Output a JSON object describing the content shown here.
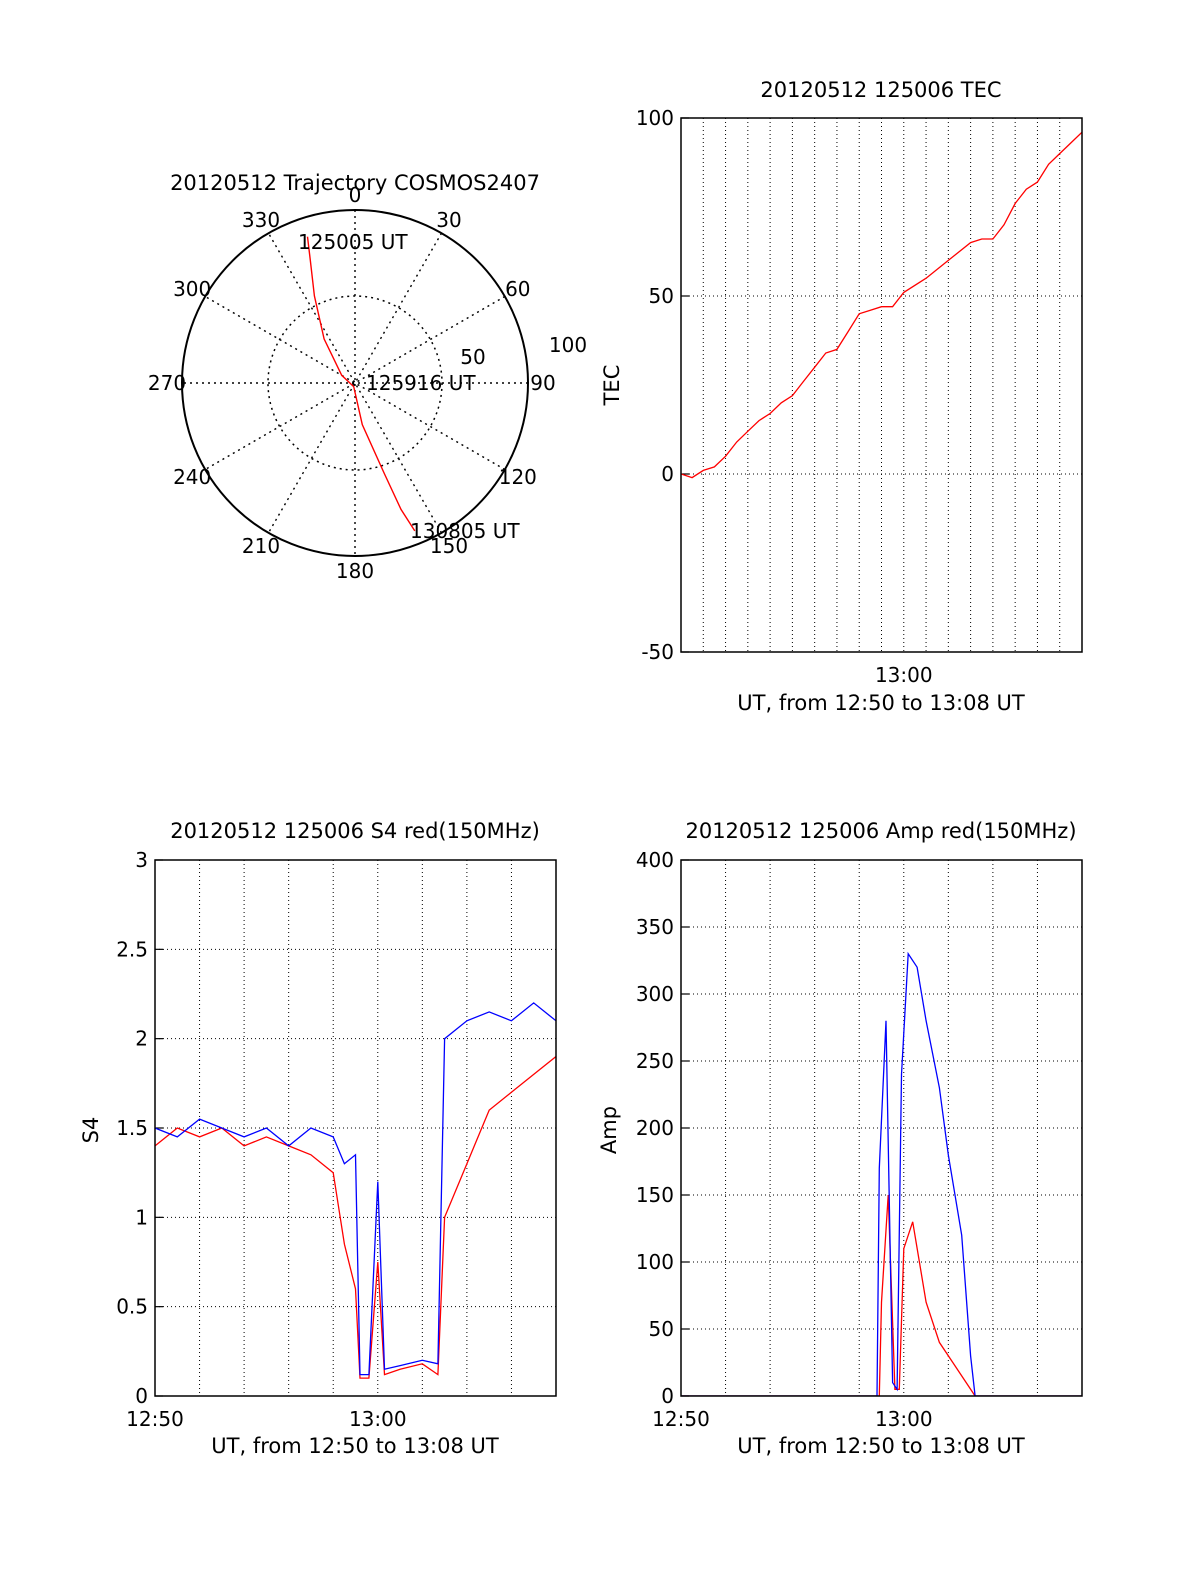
{
  "chart_data": [
    {
      "type": "polar",
      "title": "20120512 Trajectory COSMOS2407",
      "angle_labels": [
        "0",
        "30",
        "60",
        "90",
        "120",
        "150",
        "180",
        "210",
        "240",
        "270",
        "300",
        "330"
      ],
      "radius_labels": [
        "50",
        "100"
      ],
      "track": {
        "color": "#ff0000",
        "points": [
          {
            "az": 342,
            "elev": 10
          },
          {
            "az": 340,
            "elev": 22
          },
          {
            "az": 335,
            "elev": 40
          },
          {
            "az": 325,
            "elev": 62
          },
          {
            "az": 300,
            "elev": 82
          },
          {
            "az": 200,
            "elev": 88
          },
          {
            "az": 170,
            "elev": 68
          },
          {
            "az": 162,
            "elev": 40
          },
          {
            "az": 160,
            "elev": 20
          },
          {
            "az": 158,
            "elev": 7
          }
        ]
      },
      "annotations": [
        "125005 UT",
        "125916 UT",
        "130805 UT"
      ]
    },
    {
      "type": "line",
      "title": "20120512 125006 TEC",
      "xlabel": "UT, from 12:50 to 13:08 UT",
      "ylabel": "TEC",
      "xlim": [
        0,
        18
      ],
      "ylim": [
        -50,
        100
      ],
      "yticks": [
        "-50",
        "0",
        "50",
        "100"
      ],
      "xticks": [
        {
          "at": 10,
          "label": "13:00"
        }
      ],
      "series": [
        {
          "color": "#ff0000",
          "x": [
            0,
            0.5,
            1,
            1.5,
            2,
            2.5,
            3,
            3.5,
            4,
            4.5,
            5,
            5.5,
            6,
            6.5,
            7,
            7.5,
            8,
            8.5,
            9,
            9.5,
            10,
            11,
            12,
            13,
            13.5,
            14,
            14.5,
            15,
            15.5,
            16,
            16.5,
            17,
            17.5,
            18
          ],
          "y": [
            0,
            -1,
            1,
            2,
            5,
            9,
            12,
            15,
            17,
            20,
            22,
            26,
            30,
            34,
            35,
            40,
            45,
            46,
            47,
            47,
            51,
            55,
            60,
            65,
            66,
            66,
            70,
            76,
            80,
            82,
            87,
            90,
            93,
            96
          ]
        }
      ]
    },
    {
      "type": "line",
      "title": "20120512 125006 S4 red(150MHz)",
      "xlabel": "UT, from 12:50 to 13:08 UT",
      "ylabel": "S4",
      "xlim": [
        0,
        18
      ],
      "ylim": [
        0,
        3
      ],
      "yticks": [
        "0",
        "0.5",
        "1",
        "1.5",
        "2",
        "2.5",
        "3"
      ],
      "xticks": [
        {
          "at": 0,
          "label": "12:50"
        },
        {
          "at": 10,
          "label": "13:00"
        }
      ],
      "series": [
        {
          "color": "#ff0000",
          "x": [
            0,
            1,
            2,
            3,
            4,
            5,
            6,
            7,
            8,
            8.5,
            9,
            9.2,
            9.6,
            10,
            10.3,
            11,
            12,
            12.7,
            13,
            14,
            15,
            16,
            17,
            18
          ],
          "y": [
            1.4,
            1.5,
            1.45,
            1.5,
            1.4,
            1.45,
            1.4,
            1.35,
            1.25,
            0.85,
            0.6,
            0.1,
            0.1,
            0.75,
            0.12,
            0.15,
            0.18,
            0.12,
            1.0,
            1.3,
            1.6,
            1.7,
            1.8,
            1.9
          ]
        },
        {
          "color": "#0000ff",
          "x": [
            0,
            1,
            2,
            3,
            4,
            5,
            6,
            7,
            8,
            8.5,
            9,
            9.2,
            9.6,
            10,
            10.3,
            11,
            12,
            12.7,
            13,
            14,
            15,
            16,
            17,
            18
          ],
          "y": [
            1.5,
            1.45,
            1.55,
            1.5,
            1.45,
            1.5,
            1.4,
            1.5,
            1.45,
            1.3,
            1.35,
            0.12,
            0.12,
            1.2,
            0.15,
            0.17,
            0.2,
            0.18,
            2.0,
            2.1,
            2.15,
            2.1,
            2.2,
            2.1
          ]
        }
      ]
    },
    {
      "type": "line",
      "title": "20120512 125006 Amp red(150MHz)",
      "xlabel": "UT, from 12:50 to 13:08 UT",
      "ylabel": "Amp",
      "xlim": [
        0,
        18
      ],
      "ylim": [
        0,
        400
      ],
      "yticks": [
        "0",
        "50",
        "100",
        "150",
        "200",
        "250",
        "300",
        "350",
        "400"
      ],
      "xticks": [
        {
          "at": 0,
          "label": "12:50"
        },
        {
          "at": 10,
          "label": "13:00"
        }
      ],
      "series": [
        {
          "color": "#ff0000",
          "x": [
            0,
            8.9,
            9.0,
            9.3,
            9.6,
            9.8,
            10.0,
            10.4,
            11,
            11.6,
            12.2,
            12.8,
            13.2,
            18
          ],
          "y": [
            0,
            0,
            70,
            150,
            5,
            5,
            110,
            130,
            70,
            40,
            25,
            10,
            0,
            0
          ]
        },
        {
          "color": "#0000ff",
          "x": [
            0,
            8.8,
            8.9,
            9.2,
            9.5,
            9.7,
            9.9,
            10.2,
            10.6,
            11.0,
            11.6,
            12.0,
            12.6,
            13.0,
            13.2,
            18
          ],
          "y": [
            0,
            0,
            170,
            280,
            10,
            5,
            240,
            330,
            320,
            280,
            230,
            180,
            120,
            30,
            0,
            0
          ]
        }
      ]
    }
  ]
}
